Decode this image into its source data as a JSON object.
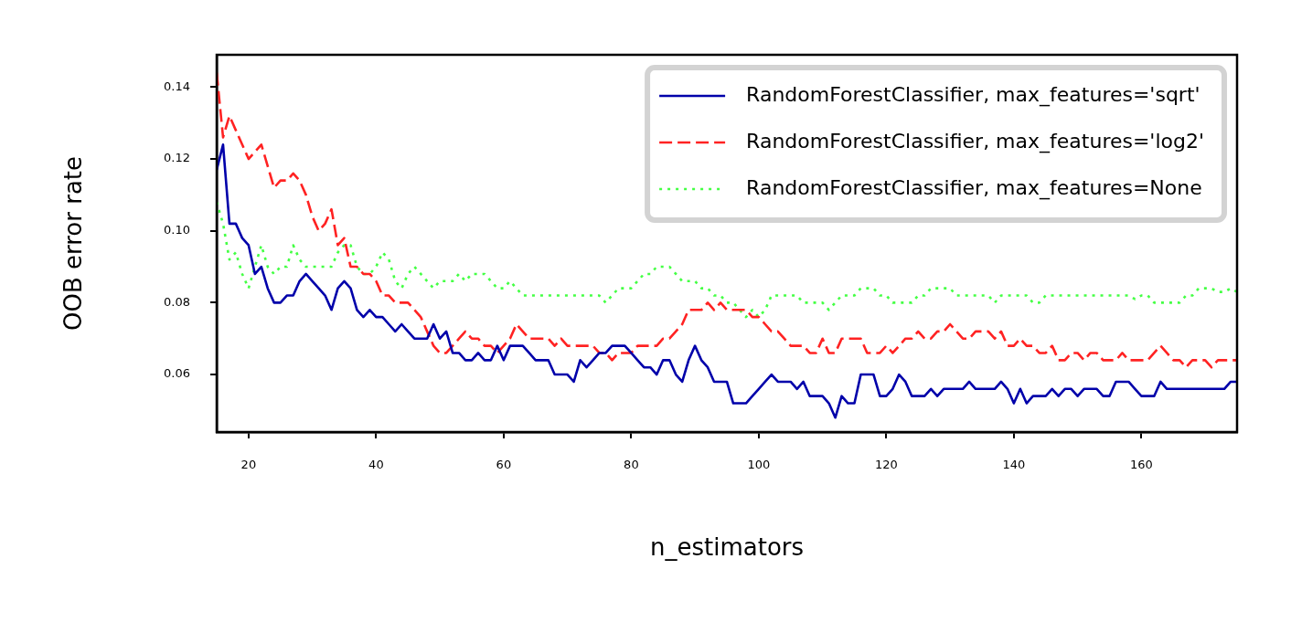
{
  "chart_data": {
    "type": "line",
    "xlabel": "n_estimators",
    "ylabel": "OOB error rate",
    "legend": "top right",
    "grid": false,
    "xlim": [
      15,
      175
    ],
    "xticks": [
      20,
      40,
      60,
      80,
      100,
      120,
      140,
      160
    ],
    "ylim": [
      0.044,
      0.149
    ],
    "yticks": [
      0.06,
      0.08,
      {
        "value": 0.1,
        "label": "0.10"
      },
      0.12,
      0.14
    ],
    "x": [
      15,
      16,
      17,
      18,
      19,
      20,
      21,
      22,
      23,
      24,
      25,
      26,
      27,
      28,
      29,
      30,
      31,
      32,
      33,
      34,
      35,
      36,
      37,
      38,
      39,
      40,
      41,
      42,
      43,
      44,
      45,
      46,
      47,
      48,
      49,
      50,
      51,
      52,
      53,
      54,
      55,
      56,
      57,
      58,
      59,
      60,
      61,
      62,
      63,
      64,
      65,
      66,
      67,
      68,
      69,
      70,
      71,
      72,
      73,
      74,
      75,
      76,
      77,
      78,
      79,
      80,
      81,
      82,
      83,
      84,
      85,
      86,
      87,
      88,
      89,
      90,
      91,
      92,
      93,
      94,
      95,
      96,
      97,
      98,
      99,
      100,
      101,
      102,
      103,
      104,
      105,
      106,
      107,
      108,
      109,
      110,
      111,
      112,
      113,
      114,
      115,
      116,
      117,
      118,
      119,
      120,
      121,
      122,
      123,
      124,
      125,
      126,
      127,
      128,
      129,
      130,
      131,
      132,
      133,
      134,
      135,
      136,
      137,
      138,
      139,
      140,
      141,
      142,
      143,
      144,
      145,
      146,
      147,
      148,
      149,
      150,
      151,
      152,
      153,
      154,
      155,
      156,
      157,
      158,
      159,
      160,
      161,
      162,
      163,
      164,
      165,
      166,
      167,
      168,
      169,
      170,
      171,
      172,
      173,
      174,
      175
    ],
    "series": [
      {
        "name": "RandomForestClassifier, max_features='sqrt'",
        "color": "#0000aa",
        "line_style": "solid",
        "values": [
          0.117,
          0.124,
          0.102,
          0.102,
          0.098,
          0.096,
          0.088,
          0.09,
          0.084,
          0.08,
          0.08,
          0.082,
          0.082,
          0.086,
          0.088,
          0.086,
          0.084,
          0.082,
          0.078,
          0.084,
          0.086,
          0.084,
          0.078,
          0.076,
          0.078,
          0.076,
          0.076,
          0.074,
          0.072,
          0.074,
          0.072,
          0.07,
          0.07,
          0.07,
          0.074,
          0.07,
          0.072,
          0.066,
          0.066,
          0.064,
          0.064,
          0.066,
          0.064,
          0.064,
          0.068,
          0.064,
          0.068,
          0.068,
          0.068,
          0.066,
          0.064,
          0.064,
          0.064,
          0.06,
          0.06,
          0.06,
          0.058,
          0.064,
          0.062,
          0.064,
          0.066,
          0.066,
          0.068,
          0.068,
          0.068,
          0.066,
          0.064,
          0.062,
          0.062,
          0.06,
          0.064,
          0.064,
          0.06,
          0.058,
          0.064,
          0.068,
          0.064,
          0.062,
          0.058,
          0.058,
          0.058,
          0.052,
          0.052,
          0.052,
          0.054,
          0.056,
          0.058,
          0.06,
          0.058,
          0.058,
          0.058,
          0.056,
          0.058,
          0.054,
          0.054,
          0.054,
          0.052,
          0.048,
          0.054,
          0.052,
          0.052,
          0.06,
          0.06,
          0.06,
          0.054,
          0.054,
          0.056,
          0.06,
          0.058,
          0.054,
          0.054,
          0.054,
          0.056,
          0.054,
          0.056,
          0.056,
          0.056,
          0.056,
          0.058,
          0.056,
          0.056,
          0.056,
          0.056,
          0.058,
          0.056,
          0.052,
          0.056,
          0.052,
          0.054,
          0.054,
          0.054,
          0.056,
          0.054,
          0.056,
          0.056,
          0.054,
          0.056,
          0.056,
          0.056,
          0.054,
          0.054,
          0.058,
          0.058,
          0.058,
          0.056,
          0.054,
          0.054,
          0.054,
          0.058,
          0.056,
          0.056,
          0.056,
          0.056,
          0.056,
          0.056,
          0.056,
          0.056,
          0.056,
          0.056,
          0.058,
          0.058
        ]
      },
      {
        "name": "RandomForestClassifier, max_features='log2'",
        "color": "#ff2222",
        "line_style": "dashed",
        "values": [
          0.144,
          0.126,
          0.132,
          0.128,
          0.124,
          0.12,
          0.122,
          0.124,
          0.118,
          0.112,
          0.114,
          0.114,
          0.116,
          0.114,
          0.11,
          0.104,
          0.1,
          0.102,
          0.106,
          0.096,
          0.098,
          0.09,
          0.09,
          0.088,
          0.088,
          0.086,
          0.082,
          0.082,
          0.08,
          0.08,
          0.08,
          0.078,
          0.076,
          0.072,
          0.068,
          0.066,
          0.066,
          0.068,
          0.07,
          0.072,
          0.07,
          0.07,
          0.068,
          0.068,
          0.066,
          0.068,
          0.07,
          0.074,
          0.072,
          0.07,
          0.07,
          0.07,
          0.07,
          0.068,
          0.07,
          0.068,
          0.068,
          0.068,
          0.068,
          0.068,
          0.066,
          0.066,
          0.064,
          0.066,
          0.066,
          0.066,
          0.068,
          0.068,
          0.068,
          0.068,
          0.07,
          0.07,
          0.072,
          0.074,
          0.078,
          0.078,
          0.078,
          0.08,
          0.078,
          0.08,
          0.078,
          0.078,
          0.078,
          0.078,
          0.076,
          0.076,
          0.074,
          0.072,
          0.072,
          0.07,
          0.068,
          0.068,
          0.068,
          0.066,
          0.066,
          0.07,
          0.066,
          0.066,
          0.07,
          0.07,
          0.07,
          0.07,
          0.066,
          0.066,
          0.066,
          0.068,
          0.066,
          0.068,
          0.07,
          0.07,
          0.072,
          0.07,
          0.07,
          0.072,
          0.072,
          0.074,
          0.072,
          0.07,
          0.07,
          0.072,
          0.072,
          0.072,
          0.07,
          0.072,
          0.068,
          0.068,
          0.07,
          0.068,
          0.068,
          0.066,
          0.066,
          0.068,
          0.064,
          0.064,
          0.066,
          0.066,
          0.064,
          0.066,
          0.066,
          0.064,
          0.064,
          0.064,
          0.066,
          0.064,
          0.064,
          0.064,
          0.064,
          0.066,
          0.068,
          0.066,
          0.064,
          0.064,
          0.062,
          0.064,
          0.064,
          0.064,
          0.062,
          0.064,
          0.064,
          0.064,
          0.064
        ]
      },
      {
        "name": "RandomForestClassifier, max_features=None",
        "color": "#44ff44",
        "line_style": "dotted",
        "values": [
          0.108,
          0.102,
          0.092,
          0.094,
          0.088,
          0.084,
          0.09,
          0.096,
          0.09,
          0.088,
          0.09,
          0.09,
          0.096,
          0.092,
          0.09,
          0.09,
          0.09,
          0.09,
          0.09,
          0.094,
          0.096,
          0.096,
          0.09,
          0.088,
          0.088,
          0.09,
          0.094,
          0.092,
          0.086,
          0.084,
          0.088,
          0.09,
          0.088,
          0.086,
          0.084,
          0.086,
          0.086,
          0.086,
          0.088,
          0.086,
          0.088,
          0.088,
          0.088,
          0.086,
          0.084,
          0.084,
          0.086,
          0.084,
          0.082,
          0.082,
          0.082,
          0.082,
          0.082,
          0.082,
          0.082,
          0.082,
          0.082,
          0.082,
          0.082,
          0.082,
          0.082,
          0.08,
          0.082,
          0.084,
          0.084,
          0.084,
          0.086,
          0.088,
          0.088,
          0.09,
          0.09,
          0.09,
          0.088,
          0.086,
          0.086,
          0.086,
          0.084,
          0.084,
          0.082,
          0.082,
          0.08,
          0.08,
          0.078,
          0.076,
          0.078,
          0.076,
          0.078,
          0.082,
          0.082,
          0.082,
          0.082,
          0.082,
          0.08,
          0.08,
          0.08,
          0.08,
          0.078,
          0.08,
          0.082,
          0.082,
          0.082,
          0.084,
          0.084,
          0.084,
          0.082,
          0.082,
          0.08,
          0.08,
          0.08,
          0.08,
          0.082,
          0.082,
          0.084,
          0.084,
          0.084,
          0.084,
          0.082,
          0.082,
          0.082,
          0.082,
          0.082,
          0.082,
          0.08,
          0.082,
          0.082,
          0.082,
          0.082,
          0.082,
          0.08,
          0.08,
          0.082,
          0.082,
          0.082,
          0.082,
          0.082,
          0.082,
          0.082,
          0.082,
          0.082,
          0.082,
          0.082,
          0.082,
          0.082,
          0.082,
          0.081,
          0.082,
          0.082,
          0.08,
          0.08,
          0.08,
          0.08,
          0.08,
          0.082,
          0.082,
          0.084,
          0.084,
          0.084,
          0.083,
          0.083,
          0.084,
          0.083
        ]
      }
    ]
  }
}
